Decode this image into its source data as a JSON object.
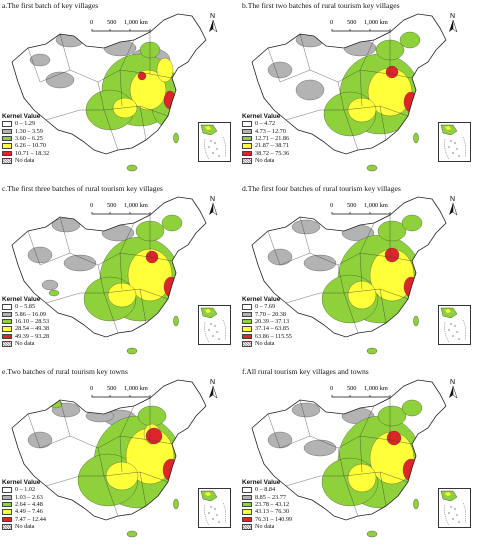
{
  "colors": {
    "c0": "#ffffff",
    "c1": "#b3b3b3",
    "c2": "#8fd13a",
    "c3": "#ffff3a",
    "c4": "#e0252a",
    "border": "#222222"
  },
  "scale": {
    "zero": "0",
    "mid": "500",
    "end": "1,000 km"
  },
  "north": "N",
  "legend_title": "Kernel Value",
  "no_data": "No data",
  "panels": [
    {
      "title": "a.The first batch of key villages",
      "classes": [
        "0 – 1.29",
        "1.30 – 3.59",
        "3.60 – 6.25",
        "6.26 – 10.70",
        "10.71 – 18.32"
      ]
    },
    {
      "title": "b.The first two batches of rural tourism key villages",
      "classes": [
        "0 – 4.72",
        "4.73 – 12.70",
        "12.71 – 21.86",
        "21.87 – 38.71",
        "38.72 – 75.36"
      ]
    },
    {
      "title": "c.The first three batches of rural tourism key villages",
      "classes": [
        "0 – 5.85",
        "5.86 – 16.09",
        "16.10 – 28.53",
        "28.54 – 49.38",
        "49.39 – 93.28"
      ]
    },
    {
      "title": "d.The first four batches of rural tourism key villages",
      "classes": [
        "0 – 7.69",
        "7.70 – 20.38",
        "20.39 – 37.13",
        "37.14 – 63.85",
        "63.86 – 115.55"
      ]
    },
    {
      "title": "e.Two batches of rural tourism key towns",
      "classes": [
        "0 – 1.02",
        "1.03 – 2.63",
        "2.64 – 4.48",
        "4.49 – 7.46",
        "7.47 – 12.44"
      ]
    },
    {
      "title": "f.All rural tourism key villages and towns",
      "classes": [
        "0 – 8.84",
        "8.85 – 23.77",
        "23.78 – 43.12",
        "43.13 – 76.30",
        "76.31 – 140.99"
      ]
    }
  ]
}
